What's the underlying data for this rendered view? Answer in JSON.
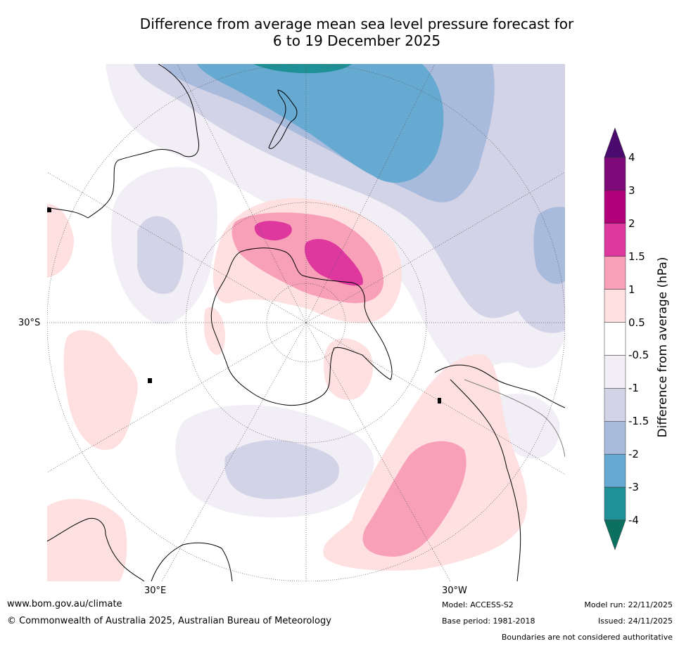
{
  "title": {
    "line1": "Difference from average mean sea level pressure forecast for",
    "line2": "6 to 19 December 2025"
  },
  "map": {
    "projection": "south polar stereographic",
    "lat_label": "30°S",
    "lon_labels": {
      "east": "30°E",
      "west": "30°W"
    }
  },
  "colorbar": {
    "label": "Difference from average (hPa)",
    "ticks": [
      "4",
      "3",
      "2",
      "1.5",
      "1",
      "0.5",
      "-0.5",
      "-1",
      "-1.5",
      "-2",
      "-3",
      "-4"
    ],
    "colors": {
      "above_4": "#4b0a6e",
      "3_to_4": "#7d0a78",
      "2_to_3": "#b0007a",
      "1_5_to_2": "#de389e",
      "1_to_1_5": "#f8a0b8",
      "0_5_to_1": "#fde0df",
      "neutral": "#ffffff",
      "m1_to_m0_5": "#f2eef6",
      "m1_5_to_m1": "#d3d3e7",
      "m2_to_m1_5": "#a9bbdc",
      "m3_to_m2": "#67aad1",
      "m4_to_m3": "#1e9096",
      "below_m4": "#0c7060"
    }
  },
  "footer": {
    "website": "www.bom.gov.au/climate",
    "copyright": "© Commonwealth of Australia 2025, Australian Bureau of Meteorology",
    "model": "Model: ACCESS-S2",
    "base_period": "Base period: 1981-2018",
    "model_run": "Model run: 22/11/2025",
    "issued": "Issued: 24/11/2025",
    "disclaimer": "Boundaries are not considered authoritative"
  }
}
